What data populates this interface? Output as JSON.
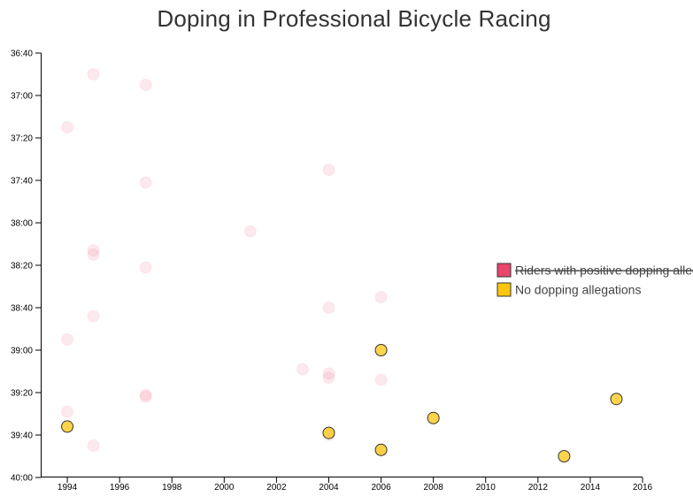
{
  "chart_data": {
    "type": "scatter",
    "title": "Doping in Professional Bicycle Racing",
    "xlim": [
      1993,
      2016
    ],
    "ylim": [
      "36:40",
      "40:00"
    ],
    "x_ticks": [
      "1994",
      "1996",
      "1998",
      "2000",
      "2002",
      "2004",
      "2006",
      "2008",
      "2010",
      "2012",
      "2014",
      "2016"
    ],
    "y_ticks": [
      "36:40",
      "37:00",
      "37:20",
      "37:40",
      "38:00",
      "38:20",
      "38:40",
      "39:00",
      "39:20",
      "39:40",
      "40:00"
    ],
    "legend": {
      "position": "right",
      "items": [
        {
          "label": "Riders with positive dopping allegations",
          "color": "#e8466d",
          "strikethrough": true
        },
        {
          "label": "No dopping allegations",
          "color": "#fcc60f",
          "strikethrough": false
        }
      ]
    },
    "series": [
      {
        "name": "Riders with positive dopping allegations",
        "color": "#e8466d",
        "points": [
          {
            "x": 1995,
            "y": "36:50"
          },
          {
            "x": 1997,
            "y": "36:55"
          },
          {
            "x": 1994,
            "y": "37:15"
          },
          {
            "x": 2004,
            "y": "37:35"
          },
          {
            "x": 1997,
            "y": "37:41"
          },
          {
            "x": 2001,
            "y": "38:04"
          },
          {
            "x": 1995,
            "y": "38:13"
          },
          {
            "x": 1995,
            "y": "38:15"
          },
          {
            "x": 1997,
            "y": "38:21"
          },
          {
            "x": 2006,
            "y": "38:35"
          },
          {
            "x": 2004,
            "y": "38:40"
          },
          {
            "x": 1995,
            "y": "38:44"
          },
          {
            "x": 1994,
            "y": "38:55"
          },
          {
            "x": 2003,
            "y": "39:09"
          },
          {
            "x": 2004,
            "y": "39:11"
          },
          {
            "x": 2004,
            "y": "39:13"
          },
          {
            "x": 2006,
            "y": "39:14"
          },
          {
            "x": 1997,
            "y": "39:21"
          },
          {
            "x": 1997,
            "y": "39:22"
          },
          {
            "x": 1994,
            "y": "39:29"
          },
          {
            "x": 2004,
            "y": "39:40"
          },
          {
            "x": 1995,
            "y": "39:45"
          },
          {
            "x": 2006,
            "y": "39:47"
          }
        ]
      },
      {
        "name": "No dopping allegations",
        "color": "#fcc60f",
        "points": [
          {
            "x": 2006,
            "y": "39:00"
          },
          {
            "x": 2015,
            "y": "39:23"
          },
          {
            "x": 2008,
            "y": "39:32"
          },
          {
            "x": 1994,
            "y": "39:36"
          },
          {
            "x": 2004,
            "y": "39:39"
          },
          {
            "x": 2006,
            "y": "39:47"
          },
          {
            "x": 2013,
            "y": "39:50"
          }
        ]
      }
    ]
  }
}
